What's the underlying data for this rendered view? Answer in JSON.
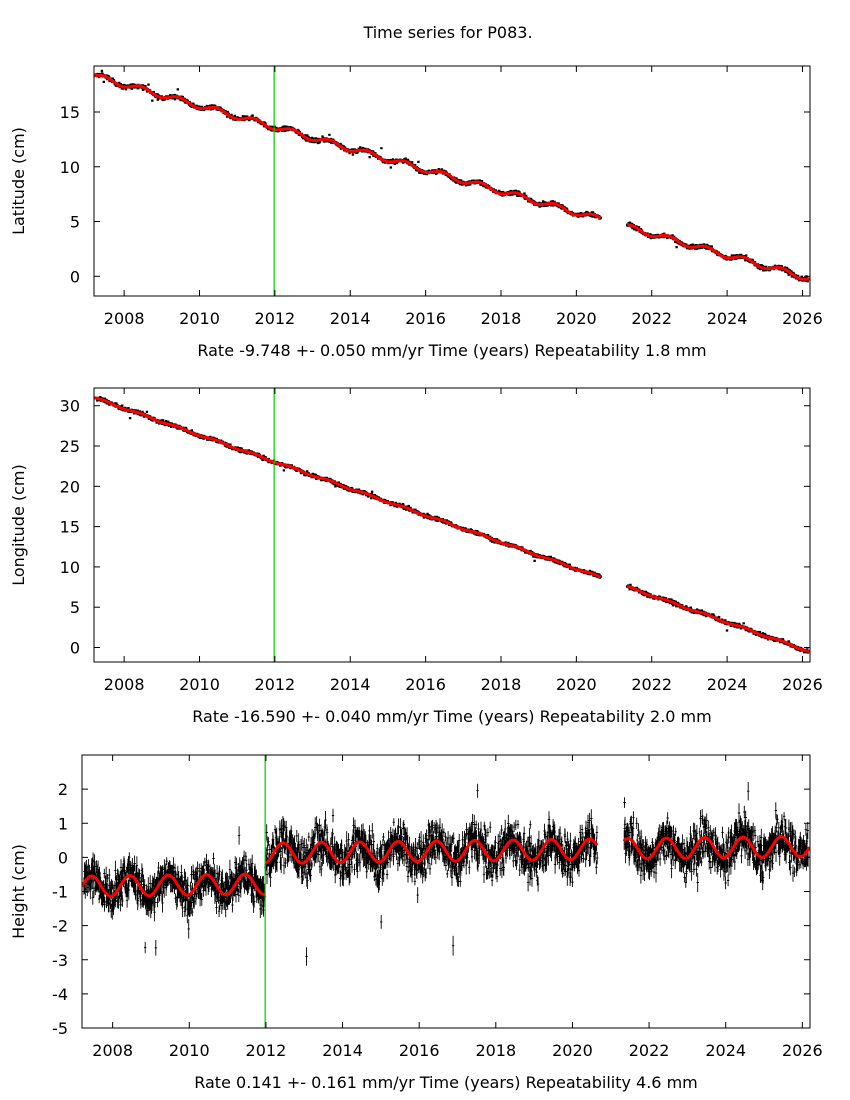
{
  "title": "Time series for P083.",
  "colors": {
    "data": "#000000",
    "fit": "#ff0000",
    "event": "#00cc00",
    "frame": "#000000"
  },
  "chart_data": [
    {
      "type": "scatter",
      "ylabel": "Latitude (cm)",
      "xlabel": {
        "rate": "Rate -9.748 +- 0.050 mm/yr",
        "axis": "Time (years)",
        "repeat": "Repeatability 1.8 mm"
      },
      "xlim": [
        2007.2,
        2026.2
      ],
      "ylim": [
        -1.8,
        19.2
      ],
      "xticks": [
        2008,
        2010,
        2012,
        2014,
        2016,
        2018,
        2020,
        2022,
        2024,
        2026
      ],
      "yticks": [
        0,
        5,
        10,
        15
      ],
      "trend": {
        "t0": 2007.2,
        "y0": 18.3,
        "rate": -0.9748
      },
      "seasonal_amplitude": 0.25,
      "noise": 0.18,
      "gap": [
        2020.65,
        2021.35
      ],
      "event": 2011.98
    },
    {
      "type": "scatter",
      "ylabel": "Longitude (cm)",
      "xlabel": {
        "rate": "Rate -16.590 +- 0.040 mm/yr",
        "axis": "Time (years)",
        "repeat": "Repeatability 2.0 mm"
      },
      "xlim": [
        2007.2,
        2026.2
      ],
      "ylim": [
        -1.8,
        32.2
      ],
      "xticks": [
        2008,
        2010,
        2012,
        2014,
        2016,
        2018,
        2020,
        2022,
        2024,
        2026
      ],
      "yticks": [
        0,
        5,
        10,
        15,
        20,
        25,
        30
      ],
      "trend": {
        "t0": 2007.2,
        "y0": 31.0,
        "rate": -1.659
      },
      "seasonal_amplitude": 0.1,
      "noise": 0.22,
      "gap": [
        2020.65,
        2021.35
      ],
      "event": 2011.98
    },
    {
      "type": "scatter",
      "ylabel": "Height (cm)",
      "xlabel": {
        "rate": "Rate 0.141 +- 0.161 mm/yr",
        "axis": "Time (years)",
        "repeat": "Repeatability 4.6 mm"
      },
      "xlim": [
        2007.2,
        2026.2
      ],
      "ylim": [
        -5.0,
        3.0
      ],
      "xticks": [
        2008,
        2010,
        2012,
        2014,
        2016,
        2018,
        2020,
        2022,
        2024,
        2026
      ],
      "yticks": [
        -5,
        -4,
        -3,
        -2,
        -1,
        0,
        1,
        2
      ],
      "trend": {
        "t0": 2007.2,
        "y0": -0.85,
        "rate": 0.0141,
        "step_at": 2011.98,
        "step": 0.9
      },
      "seasonal_amplitude": 0.3,
      "noise": 0.5,
      "gap": [
        2020.65,
        2021.35
      ],
      "event": 2011.98
    }
  ]
}
